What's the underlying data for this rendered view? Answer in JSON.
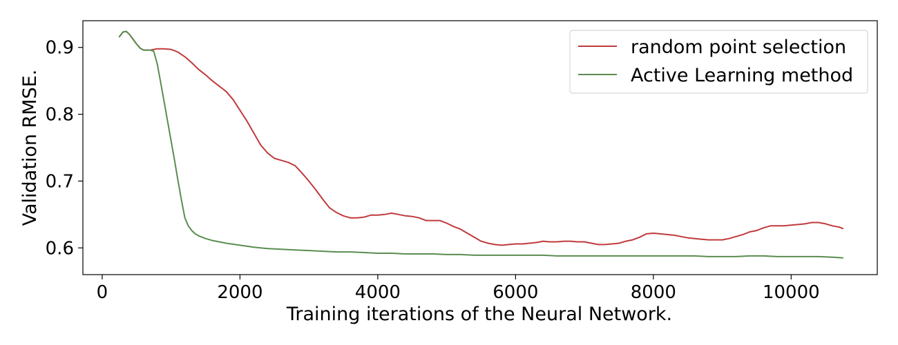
{
  "chart_data": {
    "type": "line",
    "xlabel": "Training iterations of the Neural Network.",
    "ylabel": "Validation RMSE.",
    "xlim": [
      -280,
      11250
    ],
    "ylim": [
      0.56,
      0.94
    ],
    "xticks": [
      0,
      2000,
      4000,
      6000,
      8000,
      10000
    ],
    "xtick_labels": [
      "0",
      "2000",
      "4000",
      "6000",
      "8000",
      "10000"
    ],
    "yticks": [
      0.6,
      0.7,
      0.8,
      0.9
    ],
    "ytick_labels": [
      "0.6",
      "0.7",
      "0.8",
      "0.9"
    ],
    "grid": false,
    "legend_position": "top-right",
    "series": [
      {
        "name": "random point selection",
        "color": "#c0393b",
        "x": [
          250,
          300,
          350,
          400,
          450,
          500,
          550,
          600,
          650,
          700,
          750,
          800,
          850,
          900,
          1000,
          1100,
          1200,
          1300,
          1400,
          1500,
          1600,
          1700,
          1800,
          1900,
          2000,
          2100,
          2200,
          2300,
          2400,
          2500,
          2600,
          2700,
          2800,
          2900,
          3000,
          3100,
          3200,
          3300,
          3400,
          3500,
          3600,
          3700,
          3800,
          3900,
          4000,
          4100,
          4200,
          4300,
          4400,
          4500,
          4600,
          4700,
          4800,
          4900,
          5000,
          5100,
          5200,
          5300,
          5400,
          5500,
          5600,
          5700,
          5800,
          5900,
          6000,
          6100,
          6200,
          6300,
          6400,
          6500,
          6600,
          6700,
          6800,
          6900,
          7000,
          7100,
          7200,
          7300,
          7400,
          7500,
          7600,
          7700,
          7800,
          7900,
          8000,
          8100,
          8200,
          8300,
          8400,
          8500,
          8600,
          8700,
          8800,
          8900,
          9000,
          9100,
          9200,
          9300,
          9400,
          9500,
          9600,
          9700,
          9800,
          9900,
          10000,
          10100,
          10200,
          10300,
          10400,
          10500,
          10600,
          10700,
          10750
        ],
        "values": [
          0.916,
          0.923,
          0.924,
          0.919,
          0.912,
          0.905,
          0.899,
          0.896,
          0.896,
          0.896,
          0.897,
          0.898,
          0.898,
          0.898,
          0.897,
          0.893,
          0.886,
          0.877,
          0.867,
          0.859,
          0.85,
          0.842,
          0.834,
          0.822,
          0.806,
          0.79,
          0.772,
          0.754,
          0.742,
          0.734,
          0.731,
          0.728,
          0.723,
          0.712,
          0.7,
          0.687,
          0.673,
          0.66,
          0.653,
          0.648,
          0.645,
          0.645,
          0.646,
          0.649,
          0.649,
          0.65,
          0.652,
          0.65,
          0.648,
          0.647,
          0.645,
          0.641,
          0.641,
          0.641,
          0.637,
          0.632,
          0.628,
          0.622,
          0.616,
          0.61,
          0.607,
          0.605,
          0.604,
          0.605,
          0.606,
          0.606,
          0.607,
          0.608,
          0.61,
          0.609,
          0.609,
          0.61,
          0.61,
          0.609,
          0.609,
          0.607,
          0.605,
          0.605,
          0.606,
          0.607,
          0.61,
          0.612,
          0.616,
          0.621,
          0.622,
          0.621,
          0.62,
          0.619,
          0.617,
          0.615,
          0.614,
          0.613,
          0.612,
          0.612,
          0.612,
          0.614,
          0.617,
          0.62,
          0.624,
          0.626,
          0.63,
          0.633,
          0.633,
          0.633,
          0.634,
          0.635,
          0.636,
          0.638,
          0.638,
          0.636,
          0.633,
          0.631,
          0.629
        ]
      },
      {
        "name": "Active Learning method",
        "color": "#5a8c4f",
        "x": [
          250,
          300,
          350,
          400,
          450,
          500,
          550,
          600,
          650,
          700,
          750,
          800,
          850,
          900,
          950,
          1000,
          1050,
          1100,
          1150,
          1200,
          1250,
          1300,
          1350,
          1400,
          1500,
          1600,
          1700,
          1800,
          2000,
          2200,
          2400,
          2600,
          2800,
          3000,
          3200,
          3400,
          3600,
          3800,
          4000,
          4200,
          4400,
          4600,
          4800,
          5000,
          5200,
          5400,
          5600,
          5800,
          6000,
          6200,
          6400,
          6600,
          6800,
          7000,
          7200,
          7400,
          7600,
          7800,
          8000,
          8200,
          8400,
          8600,
          8800,
          9000,
          9200,
          9400,
          9600,
          9800,
          10000,
          10200,
          10400,
          10600,
          10750
        ],
        "values": [
          0.916,
          0.923,
          0.924,
          0.919,
          0.912,
          0.905,
          0.899,
          0.896,
          0.896,
          0.896,
          0.894,
          0.875,
          0.847,
          0.818,
          0.789,
          0.76,
          0.731,
          0.701,
          0.672,
          0.645,
          0.633,
          0.626,
          0.621,
          0.618,
          0.614,
          0.611,
          0.609,
          0.607,
          0.604,
          0.601,
          0.599,
          0.598,
          0.597,
          0.596,
          0.595,
          0.594,
          0.594,
          0.593,
          0.592,
          0.592,
          0.591,
          0.591,
          0.591,
          0.59,
          0.59,
          0.589,
          0.589,
          0.589,
          0.589,
          0.589,
          0.589,
          0.588,
          0.588,
          0.588,
          0.588,
          0.588,
          0.588,
          0.588,
          0.588,
          0.588,
          0.588,
          0.588,
          0.587,
          0.587,
          0.587,
          0.588,
          0.588,
          0.587,
          0.587,
          0.587,
          0.587,
          0.586,
          0.585
        ]
      }
    ]
  }
}
